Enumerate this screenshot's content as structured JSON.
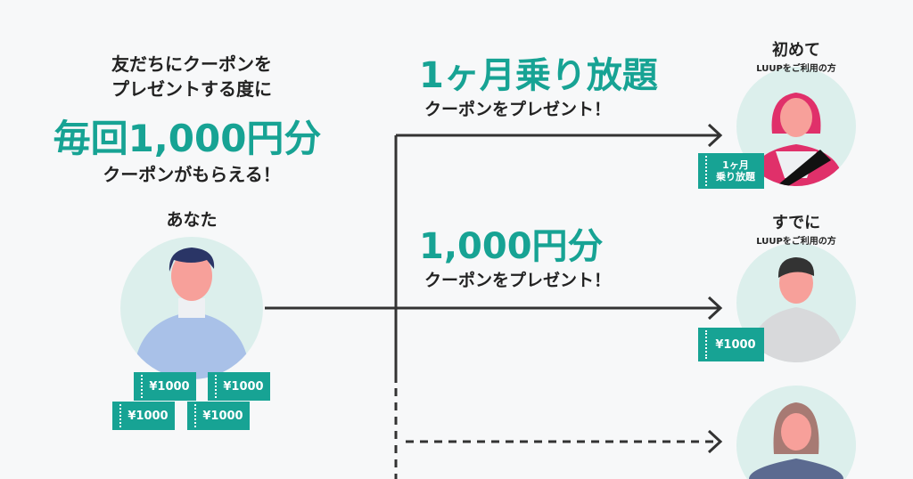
{
  "left": {
    "line1": "友だちにクーポンを",
    "line2": "プレゼントする度に",
    "headline": "毎回1,000円分",
    "line3": "クーポンがもらえる！",
    "you_label": "あなた",
    "coupons": [
      "¥1000",
      "¥1000",
      "¥1000",
      "¥1000"
    ]
  },
  "top_offer": {
    "headline": "1ヶ月乗り放題",
    "sub": "クーポンをプレゼント！"
  },
  "mid_offer": {
    "headline": "1,000円分",
    "sub": "クーポンをプレゼント！"
  },
  "new_user": {
    "title": "初めて",
    "sub": "LUUPをご利用の方",
    "coupon_line1": "1ヶ月",
    "coupon_line2": "乗り放題"
  },
  "existing_user": {
    "title": "すでに",
    "sub": "LUUPをご利用の方",
    "coupon": "¥1000"
  },
  "colors": {
    "accent": "#17a394",
    "background": "#f7f8f9",
    "avatar_bg": "#dcefec"
  }
}
